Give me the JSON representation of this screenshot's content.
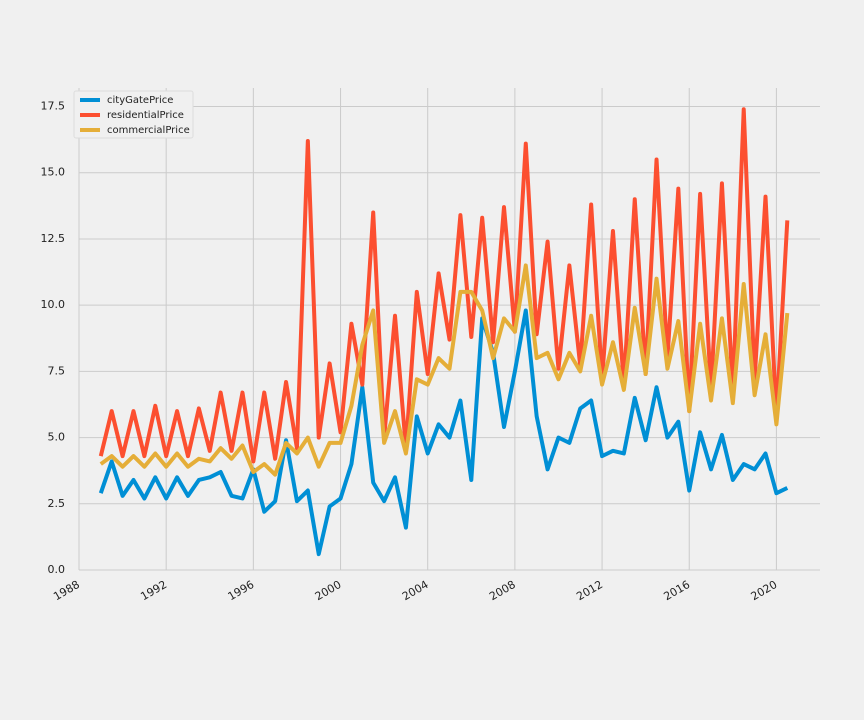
{
  "chart_data": {
    "type": "line",
    "x": [
      1989.0,
      1989.5,
      1990.0,
      1990.5,
      1991.0,
      1991.5,
      1992.0,
      1992.5,
      1993.0,
      1993.5,
      1994.0,
      1994.5,
      1995.0,
      1995.5,
      1996.0,
      1996.5,
      1997.0,
      1997.5,
      1998.0,
      1998.5,
      1999.0,
      1999.5,
      2000.0,
      2000.5,
      2001.0,
      2001.5,
      2002.0,
      2002.5,
      2003.0,
      2003.5,
      2004.0,
      2004.5,
      2005.0,
      2005.5,
      2006.0,
      2006.5,
      2007.0,
      2007.5,
      2008.0,
      2008.5,
      2009.0,
      2009.5,
      2010.0,
      2010.5,
      2011.0,
      2011.5,
      2012.0,
      2012.5,
      2013.0,
      2013.5,
      2014.0,
      2014.5,
      2015.0,
      2015.5,
      2016.0,
      2016.5,
      2017.0,
      2017.5,
      2018.0,
      2018.5,
      2019.0,
      2019.5,
      2020.0,
      2020.5
    ],
    "series": [
      {
        "name": "cityGatePrice",
        "color": "#008fd5",
        "values": [
          2.9,
          4.1,
          2.8,
          3.4,
          2.7,
          3.5,
          2.7,
          3.5,
          2.8,
          3.4,
          3.5,
          3.7,
          2.8,
          2.7,
          3.8,
          2.2,
          2.6,
          4.9,
          2.6,
          3.0,
          0.6,
          2.4,
          2.7,
          4.0,
          6.9,
          3.3,
          2.6,
          3.5,
          1.6,
          5.8,
          4.4,
          5.5,
          5.0,
          6.4,
          3.4,
          9.5,
          8.2,
          5.4,
          7.5,
          9.8,
          5.8,
          3.8,
          5.0,
          4.8,
          6.1,
          6.4,
          4.3,
          4.5,
          4.4,
          6.5,
          4.9,
          6.9,
          5.0,
          5.6,
          3.0,
          5.2,
          3.8,
          5.1,
          3.4,
          4.0,
          3.8,
          4.4,
          2.9,
          3.1
        ]
      },
      {
        "name": "residentialPrice",
        "color": "#fc4f30",
        "values": [
          4.3,
          6.0,
          4.3,
          6.0,
          4.3,
          6.2,
          4.3,
          6.0,
          4.3,
          6.1,
          4.5,
          6.7,
          4.5,
          6.7,
          4.1,
          6.7,
          4.2,
          7.1,
          4.6,
          16.2,
          5.0,
          7.8,
          5.2,
          9.3,
          7.0,
          13.5,
          5.0,
          9.6,
          4.6,
          10.5,
          7.4,
          11.2,
          8.7,
          13.4,
          8.8,
          13.3,
          8.6,
          13.7,
          9.0,
          16.1,
          8.9,
          12.4,
          7.6,
          11.5,
          7.7,
          13.8,
          7.2,
          12.8,
          7.0,
          14.0,
          7.4,
          15.5,
          8.0,
          14.4,
          6.0,
          14.2,
          6.8,
          14.6,
          6.7,
          17.4,
          7.2,
          14.1,
          5.8,
          13.2
        ]
      },
      {
        "name": "commercialPrice",
        "color": "#e5ae38",
        "values": [
          4.0,
          4.3,
          3.9,
          4.3,
          3.9,
          4.4,
          3.9,
          4.4,
          3.9,
          4.2,
          4.1,
          4.6,
          4.2,
          4.7,
          3.7,
          4.0,
          3.6,
          4.8,
          4.4,
          5.0,
          3.9,
          4.8,
          4.8,
          6.2,
          8.5,
          9.8,
          4.8,
          6.0,
          4.4,
          7.2,
          7.0,
          8.0,
          7.6,
          10.5,
          10.5,
          9.8,
          8.0,
          9.5,
          9.0,
          11.5,
          8.0,
          8.2,
          7.2,
          8.2,
          7.5,
          9.6,
          7.0,
          8.6,
          6.8,
          9.9,
          7.4,
          11.0,
          7.6,
          9.4,
          6.0,
          9.3,
          6.4,
          9.5,
          6.3,
          10.8,
          6.6,
          8.9,
          5.5,
          9.7
        ]
      }
    ],
    "xlim": [
      1988,
      2022
    ],
    "xticks": [
      1988,
      1992,
      1996,
      2000,
      2004,
      2008,
      2012,
      2016,
      2020
    ],
    "ylim": [
      0,
      18.2
    ],
    "yticks": [
      {
        "value": 0,
        "label": "0.0"
      },
      2.5,
      {
        "value": 5,
        "label": "5.0"
      },
      7.5,
      {
        "value": 10,
        "label": "10.0"
      },
      12.5,
      {
        "value": 15,
        "label": "15.0"
      },
      17.5
    ],
    "grid": true,
    "legend": "upper-left"
  }
}
